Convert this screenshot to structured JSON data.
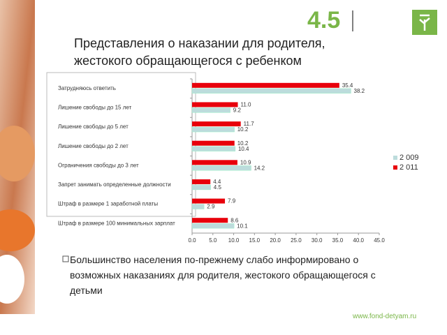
{
  "slide": {
    "number": "4.5",
    "bullet": "Большинство населения по-прежнему слабо информировано о возможных наказаниях для родителя, жестокого обращающегося с детьми",
    "url": "www.fond-detyam.ru"
  },
  "chart_data": {
    "type": "hbar",
    "title": "Представления о наказании для родителя, жестокого обращающегося с ребенком",
    "categories": [
      "Затрудняюсь ответить",
      "Лишение свободы до 15 лет",
      "Лишение свободы до 5 лет",
      "Лишение свободы до 2 лет",
      "Ограничения свободы до 3 лет",
      "Запрет занимать определенные должности",
      "Штраф в размере 1 заработной платы",
      "Штраф в размере 100 минимальных зарплат"
    ],
    "series": [
      {
        "name": "2 009",
        "color": "#bcdcdc",
        "values": [
          38.2,
          9.2,
          10.2,
          10.4,
          14.2,
          4.5,
          2.9,
          10.1
        ],
        "value_labels": [
          "38.2",
          "9.2",
          "10.2",
          "10.4",
          "14.2",
          "4.5",
          "2.9",
          "10.1"
        ]
      },
      {
        "name": "2 011",
        "color": "#e8000b",
        "values": [
          35.4,
          11.0,
          11.7,
          10.2,
          10.9,
          4.4,
          7.9,
          8.6
        ],
        "value_labels": [
          "35.4",
          "11.0",
          "11.7",
          "10.2",
          "10.9",
          "4.4",
          "7.9",
          "8.6"
        ]
      }
    ],
    "xlim": [
      0,
      45
    ],
    "xticks": [
      {
        "value": 0,
        "label": "0.0"
      },
      {
        "value": 5,
        "label": "5.0"
      },
      {
        "value": 10,
        "label": "10.0"
      },
      {
        "value": 15,
        "label": "15.0"
      },
      {
        "value": 20,
        "label": "20.0"
      },
      {
        "value": 25,
        "label": "25.0"
      },
      {
        "value": 30,
        "label": "30.0"
      },
      {
        "value": 35,
        "label": "35.0"
      },
      {
        "value": 40,
        "label": "40.0"
      },
      {
        "value": 45,
        "label": "45.0"
      }
    ],
    "grid": false,
    "legend": "right"
  }
}
